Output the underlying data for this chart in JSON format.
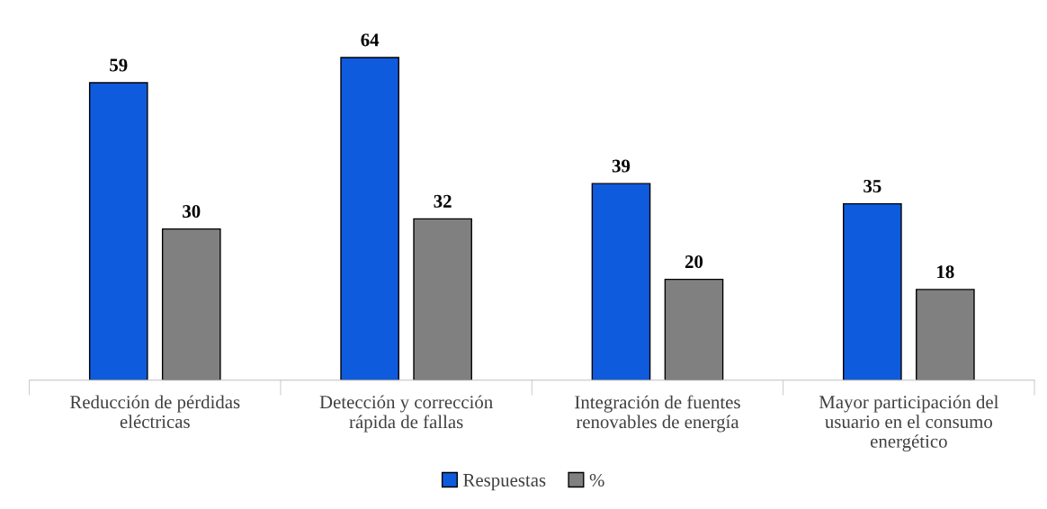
{
  "chart_data": {
    "type": "bar",
    "categories": [
      "Reducción de pérdidas\neléctricas",
      "Detección y corrección\nrápida de fallas",
      "Integración de fuentes\nrenovables de energía",
      "Mayor participación del\nusuario en el consumo\nenergético"
    ],
    "series": [
      {
        "name": "Respuestas",
        "color": "#0f5bdd",
        "values": [
          59,
          64,
          39,
          35
        ]
      },
      {
        "name": "%",
        "color": "#808080",
        "values": [
          30,
          32,
          20,
          18
        ]
      }
    ],
    "data_labels": true,
    "legend": "bottom",
    "grid": false
  }
}
